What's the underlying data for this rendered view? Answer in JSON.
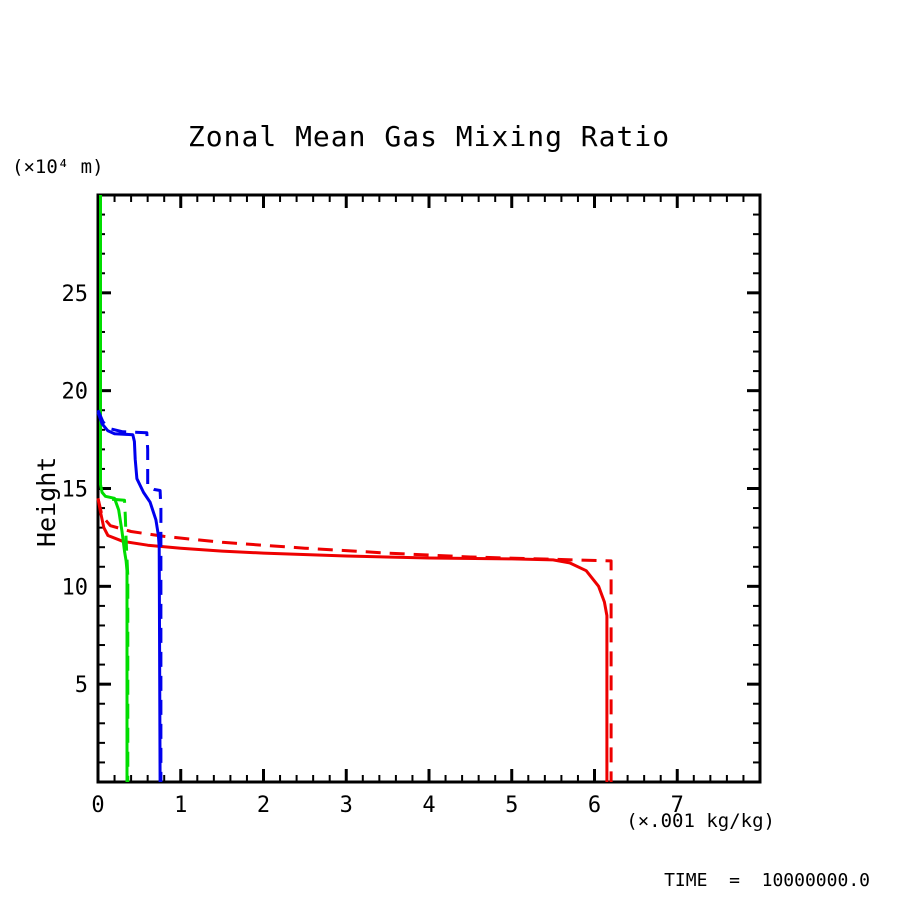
{
  "title": "Zonal Mean Gas Mixing Ratio",
  "labels": {
    "y_unit": "(×10⁴ m)",
    "x_unit": "(×.001 kg/kg)",
    "y_axis": "Height",
    "time": "TIME  =  10000000.0"
  },
  "colors": {
    "red": "#ee0000",
    "green": "#00dd00",
    "blue": "#0000ee",
    "frame": "#000000",
    "background": "#ffffff"
  },
  "chart_data": {
    "type": "line",
    "title": "Zonal Mean Gas Mixing Ratio",
    "xlabel": "(×.001 kg/kg)",
    "ylabel": "Height (×10⁴ m)",
    "annotation": "TIME = 10000000.0",
    "grid": false,
    "legend": null,
    "xlim": [
      0,
      8
    ],
    "ylim": [
      0,
      30
    ],
    "x_ticks": {
      "major_step": 1,
      "minor_step": 0.2,
      "label_values": [
        0,
        1,
        2,
        3,
        4,
        5,
        6,
        7
      ],
      "labels": [
        "0",
        "1",
        "2",
        "3",
        "4",
        "5",
        "6",
        "7"
      ]
    },
    "y_ticks": {
      "major_step": 5,
      "minor_step": 1,
      "label_values": [
        5,
        10,
        15,
        20,
        25
      ],
      "labels": [
        "5",
        "10",
        "15",
        "20",
        "25"
      ]
    },
    "series": [
      {
        "name": "red-dashed",
        "color": "#ee0000",
        "style": "dashed",
        "points": [
          [
            0,
            14.5
          ],
          [
            0.05,
            13.6
          ],
          [
            0.15,
            13.1
          ],
          [
            0.4,
            12.8
          ],
          [
            0.8,
            12.55
          ],
          [
            1.5,
            12.25
          ],
          [
            2.5,
            11.95
          ],
          [
            3.5,
            11.7
          ],
          [
            4.5,
            11.5
          ],
          [
            5.5,
            11.38
          ],
          [
            6.2,
            11.3
          ],
          [
            6.2,
            0
          ]
        ]
      },
      {
        "name": "red-solid",
        "color": "#ee0000",
        "style": "solid",
        "points": [
          [
            0,
            14.5
          ],
          [
            0.03,
            13.8
          ],
          [
            0.07,
            13.0
          ],
          [
            0.12,
            12.6
          ],
          [
            0.3,
            12.3
          ],
          [
            0.6,
            12.1
          ],
          [
            1.0,
            11.95
          ],
          [
            1.5,
            11.8
          ],
          [
            2.0,
            11.7
          ],
          [
            3.0,
            11.55
          ],
          [
            4.0,
            11.45
          ],
          [
            5.0,
            11.4
          ],
          [
            5.5,
            11.35
          ],
          [
            5.7,
            11.2
          ],
          [
            5.9,
            10.8
          ],
          [
            6.05,
            10.0
          ],
          [
            6.12,
            9.2
          ],
          [
            6.15,
            8.5
          ],
          [
            6.15,
            0
          ]
        ]
      },
      {
        "name": "green-dashed",
        "color": "#00dd00",
        "style": "dashed",
        "points": [
          [
            0.17,
            14.45
          ],
          [
            0.32,
            14.4
          ],
          [
            0.33,
            13.6
          ],
          [
            0.34,
            12.4
          ],
          [
            0.35,
            11.4
          ],
          [
            0.36,
            10.5
          ],
          [
            0.36,
            0
          ]
        ]
      },
      {
        "name": "green-solid",
        "color": "#00dd00",
        "style": "solid",
        "points": [
          [
            0.03,
            30
          ],
          [
            0.03,
            15.2
          ],
          [
            0.05,
            14.8
          ],
          [
            0.09,
            14.6
          ],
          [
            0.2,
            14.5
          ],
          [
            0.25,
            13.9
          ],
          [
            0.29,
            12.8
          ],
          [
            0.32,
            11.8
          ],
          [
            0.34,
            11.3
          ],
          [
            0.35,
            10.8
          ],
          [
            0.35,
            0
          ]
        ]
      },
      {
        "name": "blue-dashed",
        "color": "#0000ee",
        "style": "dashed",
        "points": [
          [
            0,
            19.0
          ],
          [
            0.06,
            18.4
          ],
          [
            0.15,
            18.05
          ],
          [
            0.3,
            17.9
          ],
          [
            0.59,
            17.85
          ],
          [
            0.6,
            17.0
          ],
          [
            0.6,
            15.1
          ],
          [
            0.68,
            14.95
          ],
          [
            0.75,
            14.9
          ],
          [
            0.76,
            14.0
          ],
          [
            0.76,
            0
          ]
        ]
      },
      {
        "name": "blue-solid",
        "color": "#0000ee",
        "style": "solid",
        "points": [
          [
            0,
            18.9
          ],
          [
            0.05,
            18.3
          ],
          [
            0.12,
            17.95
          ],
          [
            0.2,
            17.8
          ],
          [
            0.42,
            17.75
          ],
          [
            0.44,
            17.4
          ],
          [
            0.45,
            16.5
          ],
          [
            0.47,
            15.5
          ],
          [
            0.55,
            14.8
          ],
          [
            0.63,
            14.3
          ],
          [
            0.7,
            13.4
          ],
          [
            0.73,
            12.6
          ],
          [
            0.74,
            12.0
          ],
          [
            0.75,
            0
          ]
        ]
      }
    ]
  }
}
